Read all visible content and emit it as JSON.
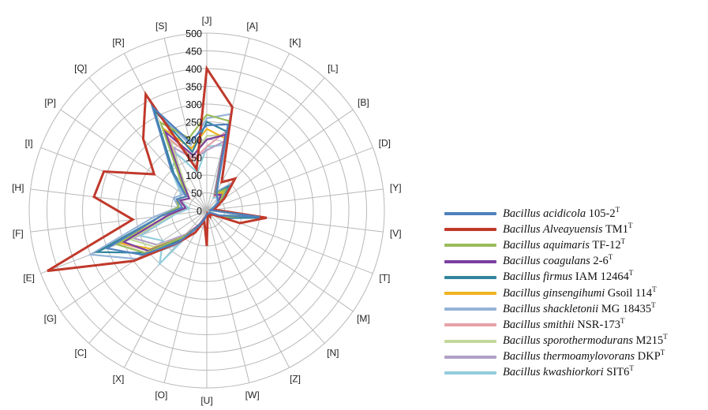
{
  "chart_data": {
    "type": "radar",
    "title": "",
    "categories": [
      "J",
      "A",
      "K",
      "L",
      "B",
      "D",
      "Y",
      "V",
      "T",
      "M",
      "N",
      "Z",
      "W",
      "U",
      "O",
      "X",
      "C",
      "G",
      "E",
      "F",
      "H",
      "I",
      "P",
      "Q",
      "R",
      "S"
    ],
    "rlim": [
      0,
      500
    ],
    "rticks": [
      "0",
      "50",
      "100",
      "150",
      "200",
      "250",
      "300",
      "350",
      "400",
      "450",
      "500"
    ],
    "grid": true,
    "legend_position": "right",
    "series": [
      {
        "name_genus": "Bacillus acidicola",
        "name_strain": "105-2",
        "sup": "T",
        "color": "#4f81bd",
        "values": [
          240,
          250,
          60,
          45,
          40,
          20,
          10,
          150,
          40,
          10,
          10,
          10,
          10,
          10,
          25,
          50,
          120,
          220,
          300,
          130,
          70,
          90,
          70,
          150,
          330,
          200
        ]
      },
      {
        "name_genus": "Bacillus Alveayuensis",
        "name_strain": "TM1",
        "sup": "T",
        "color": "#c0392b",
        "values": [
          400,
          300,
          90,
          120,
          60,
          30,
          20,
          170,
          100,
          20,
          15,
          20,
          10,
          100,
          30,
          70,
          120,
          250,
          480,
          210,
          320,
          310,
          180,
          270,
          370,
          120
        ]
      },
      {
        "name_genus": "Bacillus aquimaris",
        "name_strain": "TF-12",
        "sup": "T",
        "color": "#9bbb59",
        "values": [
          270,
          260,
          55,
          80,
          45,
          20,
          10,
          130,
          50,
          15,
          10,
          10,
          10,
          15,
          25,
          50,
          100,
          210,
          270,
          130,
          80,
          90,
          70,
          110,
          280,
          210
        ]
      },
      {
        "name_genus": "Bacillus coagulans",
        "name_strain": "2-6",
        "sup": "T",
        "color": "#7b3fa0",
        "values": [
          200,
          220,
          50,
          60,
          40,
          20,
          10,
          130,
          45,
          10,
          10,
          10,
          10,
          10,
          20,
          45,
          100,
          200,
          250,
          110,
          60,
          80,
          60,
          100,
          250,
          160
        ]
      },
      {
        "name_genus": "Bacillus firmus",
        "name_strain": "IAM 12464",
        "sup": "T",
        "color": "#31859c",
        "values": [
          250,
          230,
          55,
          90,
          45,
          20,
          10,
          170,
          60,
          15,
          10,
          15,
          10,
          15,
          25,
          50,
          110,
          210,
          330,
          130,
          80,
          90,
          70,
          140,
          320,
          170
        ]
      },
      {
        "name_genus": "Bacillus ginsengihumi",
        "name_strain": "Gsoil 114",
        "sup": "T",
        "color": "#f0b323",
        "values": [
          230,
          210,
          50,
          70,
          40,
          20,
          10,
          140,
          50,
          10,
          10,
          10,
          10,
          10,
          20,
          45,
          100,
          190,
          260,
          110,
          60,
          80,
          60,
          110,
          260,
          180
        ]
      },
      {
        "name_genus": "Bacillus shackletonii",
        "name_strain": "MG 18435",
        "sup": "T",
        "color": "#95b3d7",
        "values": [
          260,
          280,
          60,
          100,
          50,
          25,
          10,
          160,
          55,
          15,
          10,
          15,
          10,
          15,
          25,
          55,
          130,
          240,
          350,
          150,
          80,
          100,
          80,
          140,
          320,
          190
        ]
      },
      {
        "name_genus": "Bacillus smithii",
        "name_strain": "NSR-173",
        "sup": "T",
        "color": "#e6a2a8",
        "values": [
          180,
          230,
          45,
          60,
          40,
          20,
          10,
          140,
          45,
          10,
          10,
          10,
          10,
          10,
          20,
          45,
          100,
          200,
          260,
          110,
          70,
          80,
          60,
          110,
          230,
          150
        ]
      },
      {
        "name_genus": "Bacillus sporothermodurans",
        "name_strain": "M215",
        "sup": "T",
        "color": "#c4d79b",
        "values": [
          210,
          220,
          50,
          60,
          40,
          20,
          10,
          120,
          45,
          10,
          10,
          10,
          10,
          10,
          20,
          45,
          100,
          180,
          230,
          100,
          60,
          80,
          60,
          90,
          220,
          160
        ]
      },
      {
        "name_genus": "Bacillus thermoamylovorans",
        "name_strain": "DKP",
        "sup": "T",
        "color": "#b1a0c7",
        "values": [
          170,
          200,
          45,
          60,
          35,
          20,
          10,
          120,
          45,
          10,
          10,
          10,
          10,
          10,
          20,
          45,
          90,
          170,
          220,
          100,
          60,
          80,
          60,
          100,
          200,
          150
        ]
      },
      {
        "name_genus": "Bacillus kwashiorkori",
        "name_strain": "SIT6",
        "sup": "T",
        "color": "#92cddc",
        "values": [
          180,
          190,
          40,
          50,
          30,
          15,
          10,
          100,
          40,
          10,
          10,
          10,
          10,
          10,
          20,
          40,
          200,
          150,
          200,
          90,
          50,
          80,
          90,
          150,
          180,
          110
        ]
      }
    ]
  }
}
